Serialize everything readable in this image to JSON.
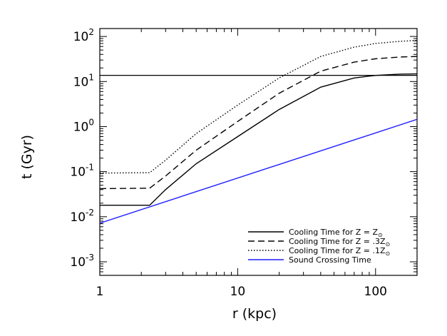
{
  "chart_data": {
    "type": "line",
    "xlabel": "r (kpc)",
    "ylabel": "t (Gyr)",
    "x_scale": "log",
    "y_scale": "log",
    "xlim": [
      1,
      200
    ],
    "ylim": [
      0.0005,
      150
    ],
    "x_ticks": [
      {
        "value": 1,
        "label": "1"
      },
      {
        "value": 10,
        "label": "10"
      },
      {
        "value": 100,
        "label": "100"
      }
    ],
    "y_ticks": [
      {
        "value": 0.001,
        "base": "10",
        "exp": "-3"
      },
      {
        "value": 0.01,
        "base": "10",
        "exp": "-2"
      },
      {
        "value": 0.1,
        "base": "10",
        "exp": "-1"
      },
      {
        "value": 1,
        "base": "10",
        "exp": "0"
      },
      {
        "value": 10,
        "base": "10",
        "exp": "1"
      },
      {
        "value": 100,
        "base": "10",
        "exp": "2"
      }
    ],
    "grid": false,
    "legend_position": "bottom-right",
    "series": [
      {
        "name_prefix": "Cooling Time for Z = ",
        "name_math": "Z",
        "name_sub": "⊙",
        "color": "#000000",
        "style": "solid",
        "x": [
          1,
          2.3,
          3,
          5,
          10,
          20,
          40,
          70,
          100,
          150,
          200
        ],
        "y": [
          0.018,
          0.018,
          0.04,
          0.15,
          0.6,
          2.4,
          7.5,
          12,
          13.7,
          14.6,
          14.8
        ]
      },
      {
        "name_prefix": "Cooling Time for Z = ",
        "name_math": ".3Z",
        "name_sub": "⊙",
        "color": "#000000",
        "style": "dashed",
        "x": [
          1,
          2.3,
          3,
          5,
          10,
          20,
          40,
          70,
          100,
          150,
          200
        ],
        "y": [
          0.042,
          0.043,
          0.08,
          0.3,
          1.3,
          5.5,
          17,
          27,
          32,
          35,
          36
        ]
      },
      {
        "name_prefix": "Cooling Time for Z = ",
        "name_math": ".1Z",
        "name_sub": "⊙",
        "color": "#000000",
        "style": "dotted",
        "x": [
          1,
          2.3,
          3,
          5,
          10,
          20,
          40,
          70,
          100,
          150,
          200
        ],
        "y": [
          0.093,
          0.095,
          0.18,
          0.7,
          3,
          12,
          36,
          58,
          70,
          78,
          82
        ]
      },
      {
        "name": "Sound Crossing Time",
        "color": "#1f1fff",
        "style": "solid",
        "x": [
          1,
          200
        ],
        "y": [
          0.0072,
          1.45
        ]
      }
    ],
    "hlines": [
      {
        "y": 13.7,
        "color": "#000000",
        "style": "solid"
      }
    ]
  }
}
